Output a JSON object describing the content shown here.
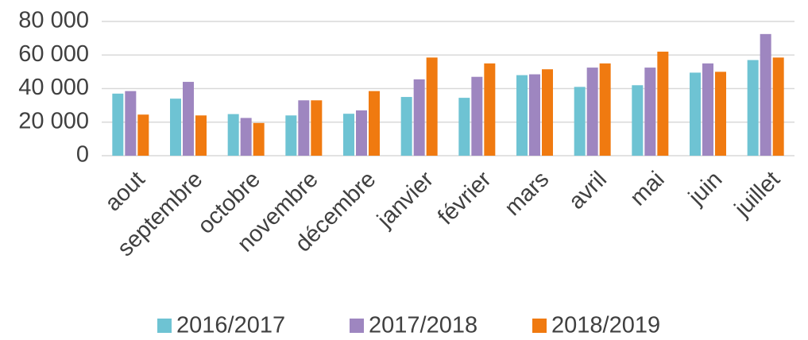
{
  "chart_data": {
    "type": "bar",
    "categories": [
      "aout",
      "septembre",
      "octobre",
      "novembre",
      "décembre",
      "janvier",
      "février",
      "mars",
      "avril",
      "mai",
      "juin",
      "juillet"
    ],
    "series": [
      {
        "name": "2016/2017",
        "color": "#6ec3d3",
        "values": [
          37000,
          34000,
          24800,
          24000,
          25000,
          35000,
          34500,
          48000,
          41000,
          42000,
          49500,
          57000
        ]
      },
      {
        "name": "2017/2018",
        "color": "#9e86c0",
        "values": [
          38500,
          44000,
          22500,
          33000,
          27000,
          45500,
          47000,
          48500,
          52500,
          52500,
          55000,
          72500
        ]
      },
      {
        "name": "2018/2019",
        "color": "#f07a10",
        "values": [
          24500,
          24000,
          19500,
          33000,
          38500,
          58500,
          55000,
          51500,
          55000,
          62000,
          50000,
          58500
        ]
      }
    ],
    "ylim": [
      0,
      80000
    ],
    "yticks": [
      0,
      {
        "value": 20000,
        "label": "20 000"
      },
      {
        "value": 40000,
        "label": "40 000"
      },
      {
        "value": 60000,
        "label": "60 000"
      },
      {
        "value": 80000,
        "label": "80 000"
      }
    ],
    "grid": true,
    "legend": "bottom"
  }
}
